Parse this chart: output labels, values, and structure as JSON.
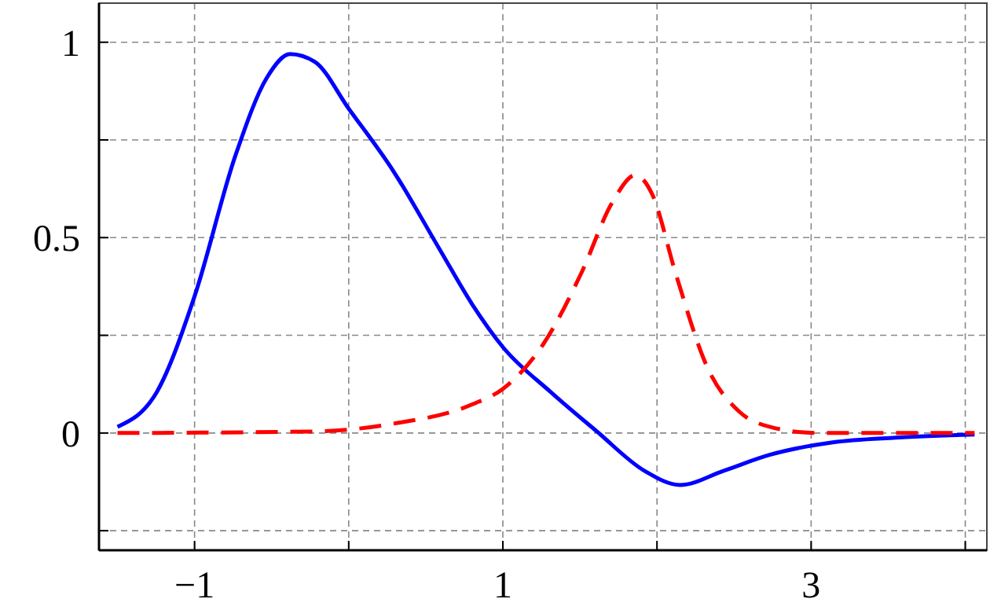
{
  "chart_data": {
    "type": "line",
    "xlim": [
      -1.62,
      4.14
    ],
    "ylim": [
      -0.3,
      1.1
    ],
    "xticks": [
      {
        "value": -1,
        "label": "−1"
      },
      {
        "value": 0,
        "label": null
      },
      1,
      {
        "value": 2,
        "label": null
      },
      3,
      {
        "value": 4,
        "label": null
      }
    ],
    "yticks": [
      {
        "value": -0.25,
        "label": null
      },
      0,
      {
        "value": 0.25,
        "label": null
      },
      0.5,
      {
        "value": 0.75,
        "label": null
      },
      1
    ],
    "grid": true,
    "series": [
      {
        "color": "#0000ff",
        "line_style": "solid",
        "x": [
          -1.5,
          -1.245,
          -1,
          -0.735,
          -0.53,
          -0.38,
          -0.22,
          0,
          0.29,
          0.59,
          0.8,
          1,
          1.31,
          1.61,
          1.92,
          2.15,
          2.43,
          2.73,
          3.14,
          3.55,
          4.06
        ],
        "values": [
          0.016,
          0.105,
          0.35,
          0.71,
          0.91,
          0.97,
          0.95,
          0.83,
          0.67,
          0.47,
          0.33,
          0.22,
          0.105,
          0.004,
          -0.097,
          -0.133,
          -0.097,
          -0.056,
          -0.024,
          -0.012,
          -0.004
        ]
      },
      {
        "color": "#ff0000",
        "line_style": "dashed",
        "x": [
          -1.5,
          -0.22,
          0.29,
          0.8,
          1,
          1.26,
          1.51,
          1.71,
          1.86,
          1.97,
          2.12,
          2.33,
          2.53,
          2.73,
          3.04,
          4.06
        ],
        "values": [
          0,
          0.004,
          0.024,
          0.073,
          0.113,
          0.226,
          0.41,
          0.59,
          0.66,
          0.61,
          0.41,
          0.165,
          0.056,
          0.016,
          0,
          0
        ]
      }
    ]
  }
}
